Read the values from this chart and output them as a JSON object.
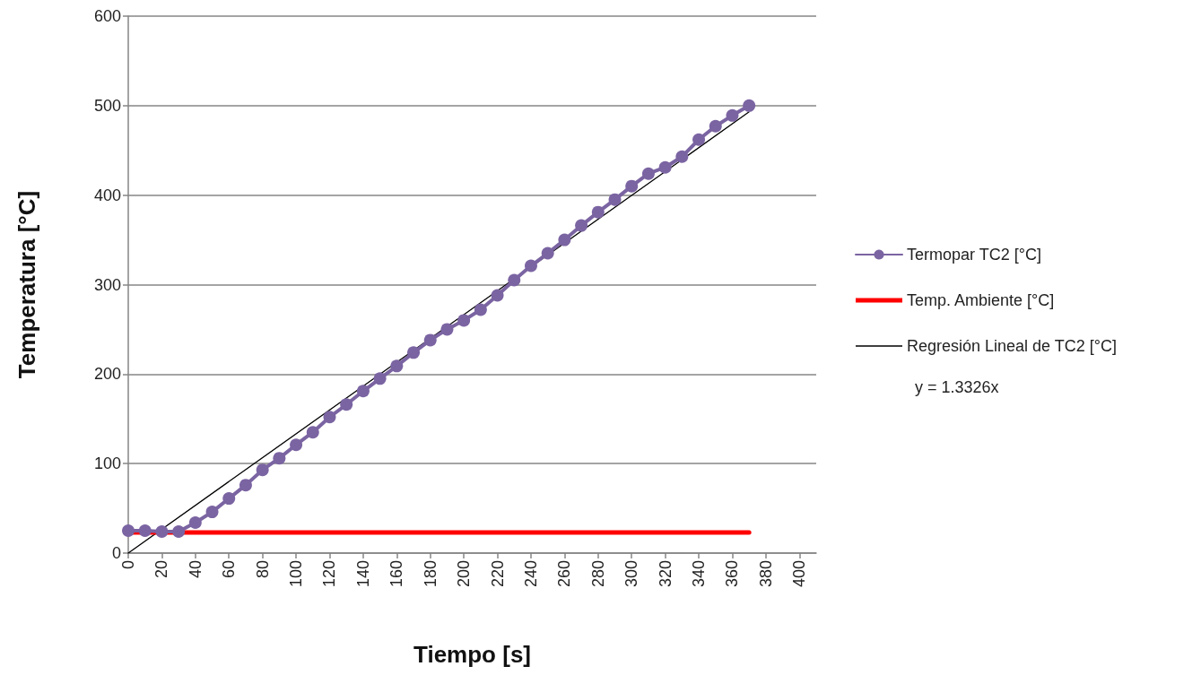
{
  "chart_data": {
    "type": "line",
    "xlabel": "Tiempo [s]",
    "ylabel": "Temperatura [°C]",
    "xlim": [
      0,
      410
    ],
    "xticks": [
      0,
      20,
      40,
      60,
      80,
      100,
      120,
      140,
      160,
      180,
      200,
      220,
      240,
      260,
      280,
      300,
      320,
      340,
      360,
      380,
      400
    ],
    "ylim": [
      0,
      600
    ],
    "yticks": [
      0,
      100,
      200,
      300,
      400,
      500,
      600
    ],
    "grid": "y",
    "legend": "right",
    "line_style": "solid",
    "series": [
      {
        "name": "Termopar TC2 [°C]",
        "color": "#7b64a2",
        "marker": "circle",
        "x": [
          0,
          10,
          20,
          30,
          40,
          50,
          60,
          70,
          80,
          90,
          100,
          110,
          120,
          130,
          140,
          150,
          160,
          170,
          180,
          190,
          200,
          210,
          220,
          230,
          240,
          250,
          260,
          270,
          280,
          290,
          300,
          310,
          320,
          330,
          340,
          350,
          360,
          370
        ],
        "values": [
          25,
          25,
          24,
          24,
          34,
          46,
          61,
          76,
          93,
          106,
          121,
          135,
          152,
          166,
          181,
          195,
          209,
          224,
          238,
          250,
          260,
          272,
          288,
          305,
          321,
          335,
          350,
          366,
          381,
          395,
          410,
          424,
          431,
          443,
          462,
          477,
          489,
          500
        ]
      },
      {
        "name": "Temp. Ambiente [°C]",
        "color": "#ff0000",
        "marker": "none",
        "x": [
          0,
          370
        ],
        "values": [
          23,
          23
        ]
      },
      {
        "name": "Regresión Lineal de TC2 [°C]",
        "color": "#000000",
        "marker": "none",
        "x": [
          0,
          370
        ],
        "values": [
          0,
          493
        ]
      }
    ],
    "annotations": [
      "y = 1.3326x"
    ]
  }
}
